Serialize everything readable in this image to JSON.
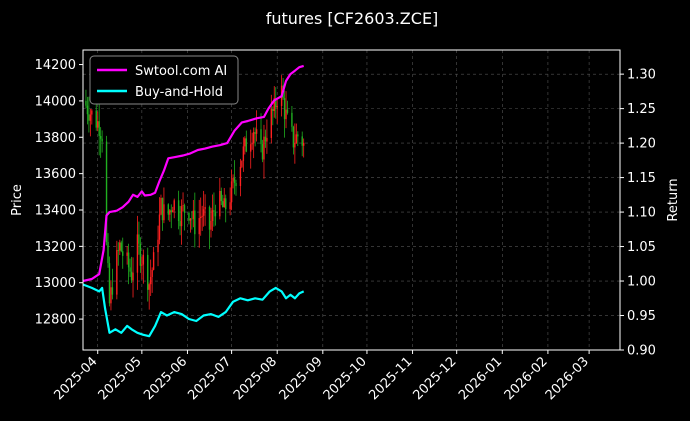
{
  "chart_data": {
    "type": "line",
    "title": "futures [CF2603.ZCE]",
    "ylabel_left": "Price",
    "ylabel_right": "Return",
    "grid": true,
    "legend_position": "top-left",
    "xlim": [
      "2025-03-22",
      "2026-03-22"
    ],
    "ylim_left": [
      12630,
      14280
    ],
    "ylim_right": [
      0.9,
      1.335
    ],
    "x_ticks": [
      "2025-04",
      "2025-05",
      "2025-06",
      "2025-07",
      "2025-08",
      "2025-09",
      "2025-10",
      "2025-11",
      "2025-12",
      "2026-01",
      "2026-02",
      "2026-03"
    ],
    "y_ticks_left": [
      12800,
      13000,
      13200,
      13400,
      13600,
      13800,
      14000,
      14200
    ],
    "y_ticks_right": [
      "0.90",
      "0.95",
      "1.00",
      "1.05",
      "1.10",
      "1.15",
      "1.20",
      "1.25",
      "1.30"
    ],
    "series": [
      {
        "name": "Swtool.com AI",
        "axis": "right",
        "color": "#ff00ff",
        "points": [
          [
            "2025-03-22",
            1.0
          ],
          [
            "2025-03-28",
            1.003
          ],
          [
            "2025-04-02",
            1.01
          ],
          [
            "2025-04-05",
            1.045
          ],
          [
            "2025-04-07",
            1.095
          ],
          [
            "2025-04-09",
            1.1
          ],
          [
            "2025-04-14",
            1.102
          ],
          [
            "2025-04-18",
            1.107
          ],
          [
            "2025-04-22",
            1.115
          ],
          [
            "2025-04-25",
            1.125
          ],
          [
            "2025-04-28",
            1.122
          ],
          [
            "2025-05-01",
            1.13
          ],
          [
            "2025-05-03",
            1.124
          ],
          [
            "2025-05-07",
            1.125
          ],
          [
            "2025-05-10",
            1.128
          ],
          [
            "2025-05-13",
            1.145
          ],
          [
            "2025-05-16",
            1.16
          ],
          [
            "2025-05-19",
            1.178
          ],
          [
            "2025-05-24",
            1.18
          ],
          [
            "2025-05-29",
            1.182
          ],
          [
            "2025-06-03",
            1.185
          ],
          [
            "2025-06-08",
            1.19
          ],
          [
            "2025-06-13",
            1.192
          ],
          [
            "2025-06-18",
            1.195
          ],
          [
            "2025-06-23",
            1.197
          ],
          [
            "2025-06-28",
            1.2
          ],
          [
            "2025-07-03",
            1.218
          ],
          [
            "2025-07-08",
            1.23
          ],
          [
            "2025-07-12",
            1.232
          ],
          [
            "2025-07-18",
            1.236
          ],
          [
            "2025-07-23",
            1.238
          ],
          [
            "2025-07-26",
            1.25
          ],
          [
            "2025-07-30",
            1.262
          ],
          [
            "2025-08-04",
            1.268
          ],
          [
            "2025-08-07",
            1.29
          ],
          [
            "2025-08-10",
            1.3
          ],
          [
            "2025-08-13",
            1.305
          ],
          [
            "2025-08-16",
            1.31
          ],
          [
            "2025-08-19",
            1.312
          ]
        ]
      },
      {
        "name": "Buy-and-Hold",
        "axis": "right",
        "color": "#00ffff",
        "points": [
          [
            "2025-03-22",
            0.995
          ],
          [
            "2025-03-28",
            0.99
          ],
          [
            "2025-04-02",
            0.985
          ],
          [
            "2025-04-04",
            0.99
          ],
          [
            "2025-04-06",
            0.96
          ],
          [
            "2025-04-09",
            0.925
          ],
          [
            "2025-04-13",
            0.93
          ],
          [
            "2025-04-17",
            0.925
          ],
          [
            "2025-04-21",
            0.935
          ],
          [
            "2025-04-24",
            0.93
          ],
          [
            "2025-04-28",
            0.925
          ],
          [
            "2025-05-02",
            0.922
          ],
          [
            "2025-05-06",
            0.92
          ],
          [
            "2025-05-10",
            0.935
          ],
          [
            "2025-05-14",
            0.955
          ],
          [
            "2025-05-18",
            0.95
          ],
          [
            "2025-05-23",
            0.955
          ],
          [
            "2025-05-28",
            0.952
          ],
          [
            "2025-06-02",
            0.945
          ],
          [
            "2025-06-07",
            0.942
          ],
          [
            "2025-06-12",
            0.95
          ],
          [
            "2025-06-17",
            0.952
          ],
          [
            "2025-06-22",
            0.948
          ],
          [
            "2025-06-27",
            0.955
          ],
          [
            "2025-07-02",
            0.97
          ],
          [
            "2025-07-07",
            0.975
          ],
          [
            "2025-07-12",
            0.972
          ],
          [
            "2025-07-17",
            0.975
          ],
          [
            "2025-07-22",
            0.973
          ],
          [
            "2025-07-27",
            0.985
          ],
          [
            "2025-07-31",
            0.99
          ],
          [
            "2025-08-04",
            0.985
          ],
          [
            "2025-08-07",
            0.975
          ],
          [
            "2025-08-10",
            0.98
          ],
          [
            "2025-08-13",
            0.975
          ],
          [
            "2025-08-16",
            0.982
          ],
          [
            "2025-08-19",
            0.985
          ]
        ]
      },
      {
        "name": "Price",
        "axis": "left",
        "type": "candlestick",
        "up_color": "#ff2020",
        "down_color": "#20b020",
        "points": [
          [
            "2025-03-22",
            14000
          ],
          [
            "2025-03-26",
            13950
          ],
          [
            "2025-03-30",
            13900
          ],
          [
            "2025-04-02",
            13870
          ],
          [
            "2025-04-04",
            13820
          ],
          [
            "2025-04-07",
            13200
          ],
          [
            "2025-04-09",
            12880
          ],
          [
            "2025-04-12",
            13050
          ],
          [
            "2025-04-16",
            13200
          ],
          [
            "2025-04-20",
            13120
          ],
          [
            "2025-04-24",
            13050
          ],
          [
            "2025-04-28",
            13200
          ],
          [
            "2025-05-02",
            13120
          ],
          [
            "2025-05-06",
            13000
          ],
          [
            "2025-05-10",
            13150
          ],
          [
            "2025-05-14",
            13420
          ],
          [
            "2025-05-18",
            13350
          ],
          [
            "2025-05-22",
            13450
          ],
          [
            "2025-05-27",
            13380
          ],
          [
            "2025-06-01",
            13420
          ],
          [
            "2025-06-06",
            13320
          ],
          [
            "2025-06-11",
            13380
          ],
          [
            "2025-06-16",
            13300
          ],
          [
            "2025-06-21",
            13460
          ],
          [
            "2025-06-26",
            13400
          ],
          [
            "2025-07-01",
            13500
          ],
          [
            "2025-07-06",
            13650
          ],
          [
            "2025-07-11",
            13760
          ],
          [
            "2025-07-16",
            13850
          ],
          [
            "2025-07-21",
            13700
          ],
          [
            "2025-07-26",
            13880
          ],
          [
            "2025-07-30",
            13950
          ],
          [
            "2025-08-03",
            14100
          ],
          [
            "2025-08-06",
            13950
          ],
          [
            "2025-08-09",
            13850
          ],
          [
            "2025-08-12",
            13780
          ],
          [
            "2025-08-16",
            13820
          ],
          [
            "2025-08-19",
            13760
          ]
        ]
      }
    ]
  }
}
